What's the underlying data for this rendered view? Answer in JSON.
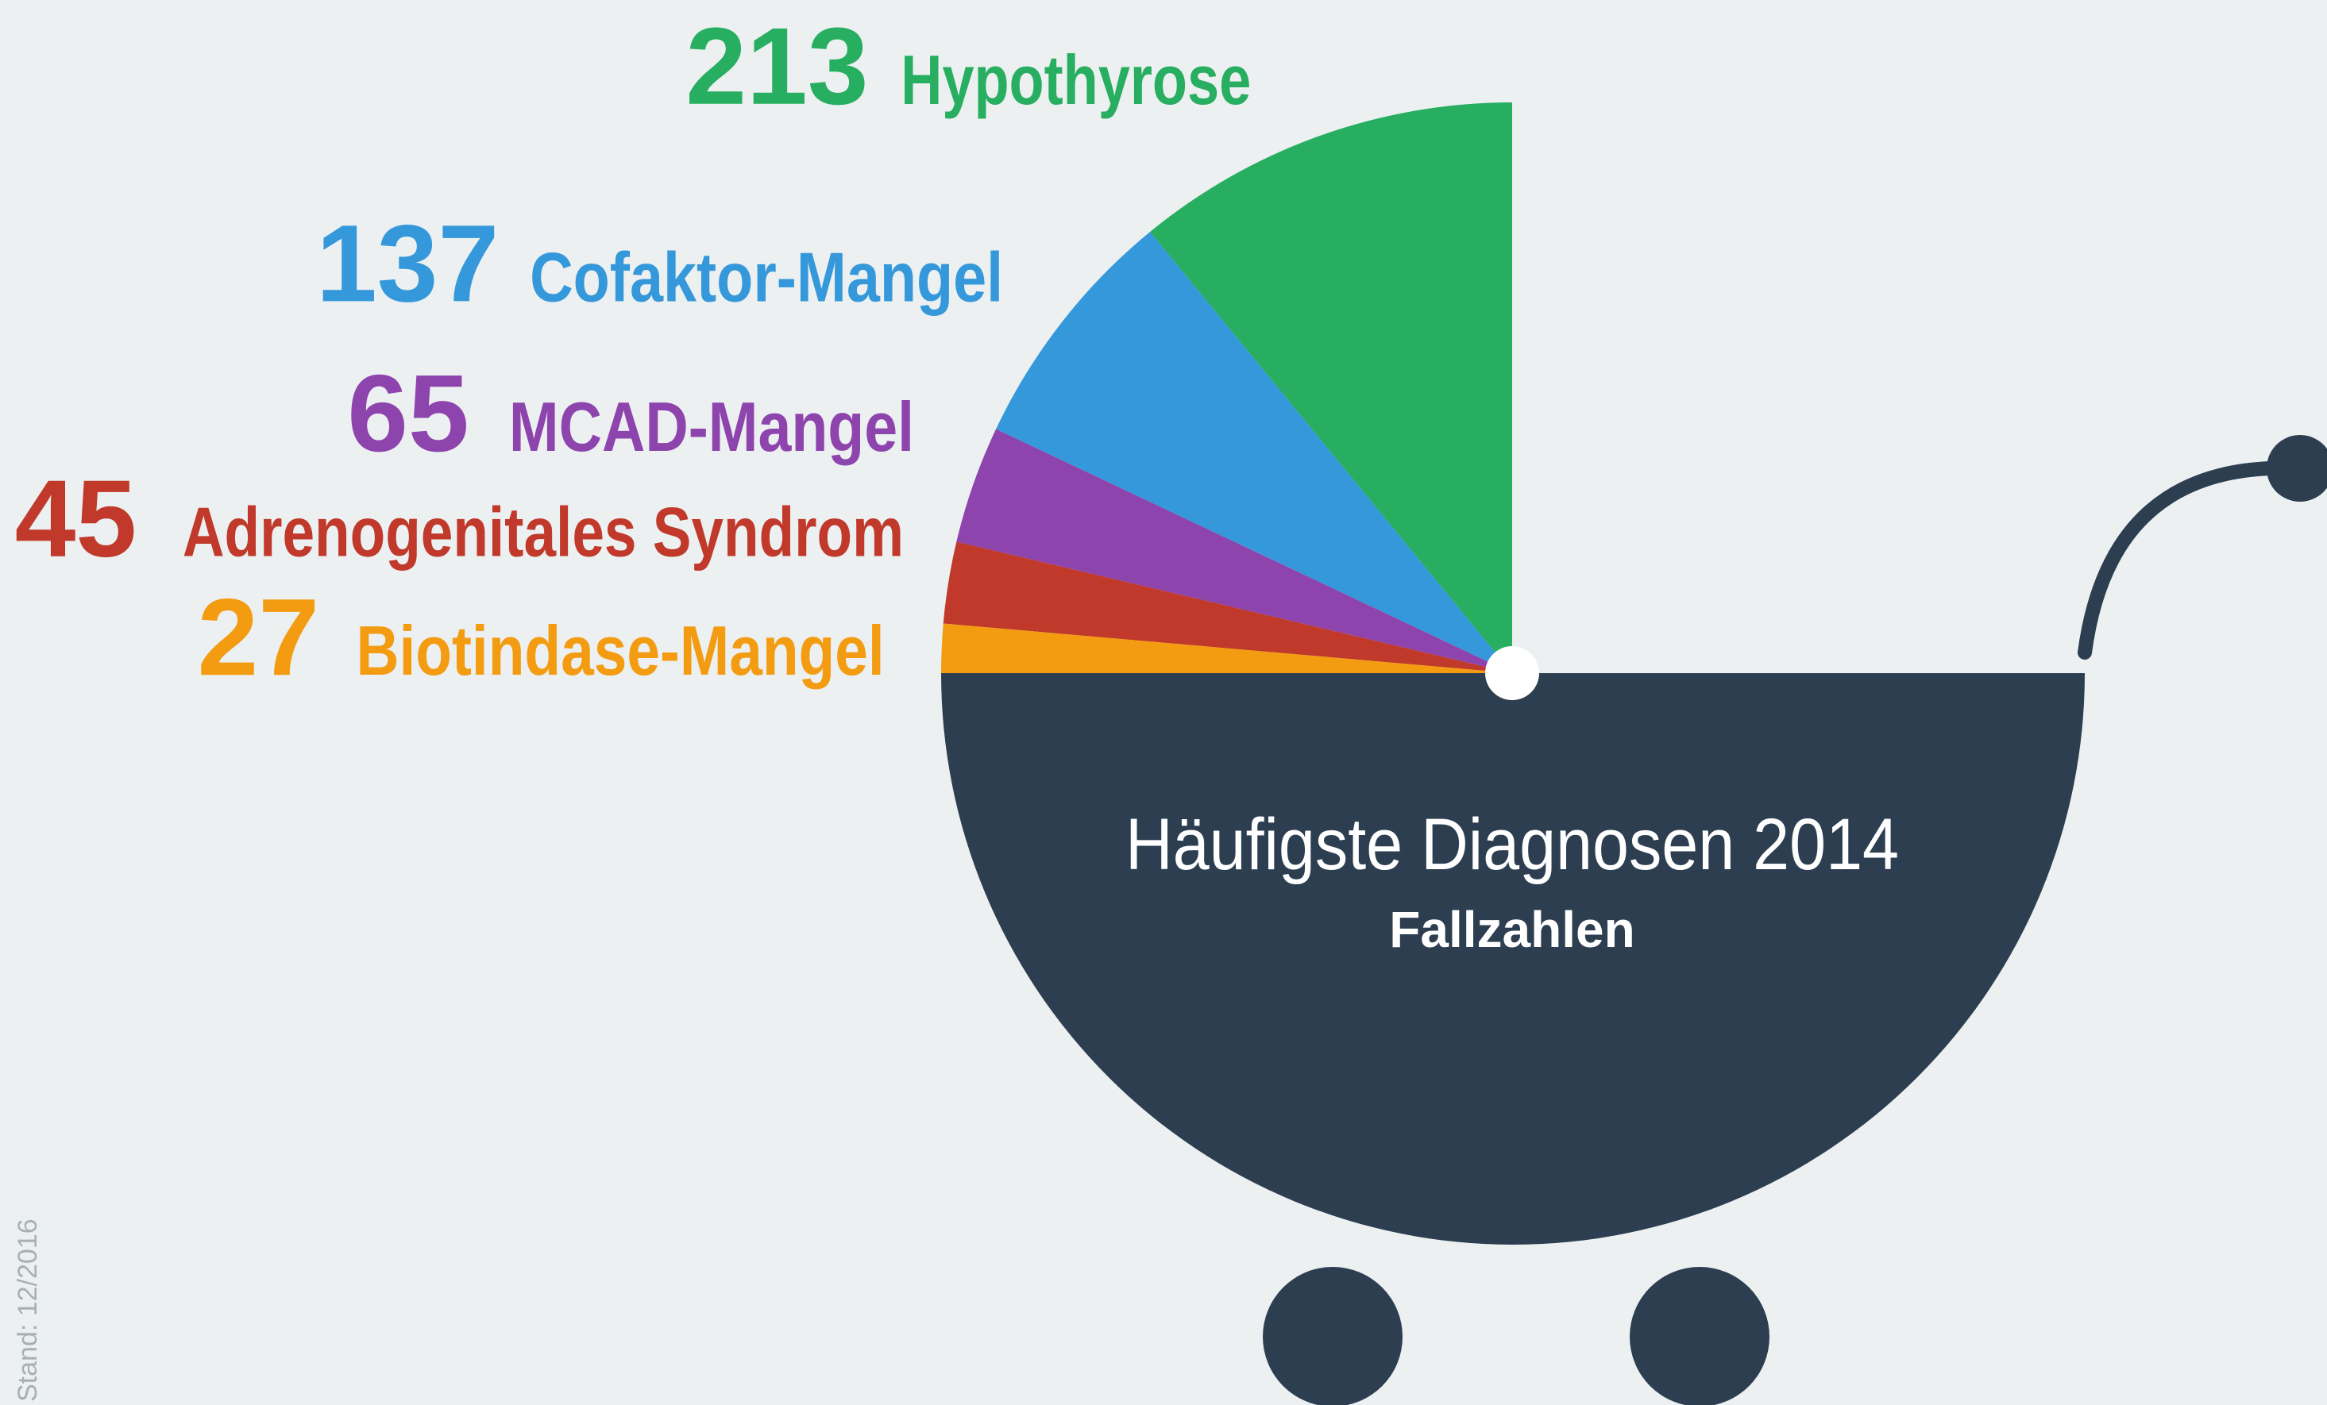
{
  "chart_data": {
    "type": "pie",
    "title": "Häufigste Diagnosen 2014",
    "subtitle": "Fallzahlen",
    "categories": [
      "Hypothyrose",
      "Cofaktor-Mangel",
      "MCAD-Mangel",
      "Adrenogenitales Syndrom",
      "Biotindase-Mangel"
    ],
    "values": [
      213,
      137,
      65,
      45,
      27
    ],
    "colors": [
      "#27ae60",
      "#3498db",
      "#8e44ad",
      "#c0392b",
      "#f39c12"
    ],
    "note": "Stand: 12/2016"
  }
}
